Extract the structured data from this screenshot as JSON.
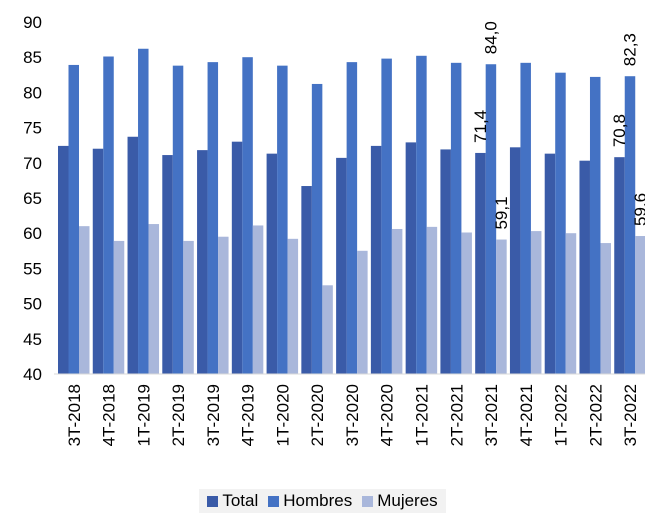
{
  "chart_data": {
    "type": "bar",
    "title": "",
    "xlabel": "",
    "ylabel": "",
    "ylim": [
      40,
      90
    ],
    "yticks": [
      40,
      45,
      50,
      55,
      60,
      65,
      70,
      75,
      80,
      85,
      90
    ],
    "grid": false,
    "legend_position": "bottom",
    "categories": [
      "3T-2018",
      "4T-2018",
      "1T-2019",
      "2T-2019",
      "3T-2019",
      "4T-2019",
      "1T-2020",
      "2T-2020",
      "3T-2020",
      "4T-2020",
      "1T-2021",
      "2T-2021",
      "3T-2021",
      "4T-2021",
      "1T-2022",
      "2T-2022",
      "3T-2022"
    ],
    "series": [
      {
        "name": "Total",
        "color": "#3a5ba8",
        "values": [
          72.4,
          72.0,
          73.7,
          71.1,
          71.8,
          73.0,
          71.3,
          66.7,
          70.7,
          72.4,
          72.9,
          71.9,
          71.4,
          72.2,
          71.3,
          70.3,
          70.8
        ]
      },
      {
        "name": "Hombres",
        "color": "#4472c4",
        "values": [
          83.9,
          85.1,
          86.2,
          83.8,
          84.3,
          85.0,
          83.8,
          81.2,
          84.3,
          84.8,
          85.2,
          84.2,
          84.0,
          84.2,
          82.8,
          82.2,
          82.3
        ]
      },
      {
        "name": "Mujeres",
        "color": "#a9b7db",
        "values": [
          61.0,
          58.9,
          61.3,
          58.9,
          59.5,
          61.1,
          59.2,
          52.6,
          57.5,
          60.6,
          60.9,
          60.1,
          59.1,
          60.3,
          60.0,
          58.6,
          59.6
        ]
      }
    ],
    "data_labels": [
      {
        "category": "3T-2021",
        "series": "Total",
        "text": "71,4"
      },
      {
        "category": "3T-2021",
        "series": "Hombres",
        "text": "84,0"
      },
      {
        "category": "3T-2021",
        "series": "Mujeres",
        "text": "59,1"
      },
      {
        "category": "3T-2022",
        "series": "Total",
        "text": "70,8"
      },
      {
        "category": "3T-2022",
        "series": "Hombres",
        "text": "82,3"
      },
      {
        "category": "3T-2022",
        "series": "Mujeres",
        "text": "59,6"
      }
    ]
  }
}
